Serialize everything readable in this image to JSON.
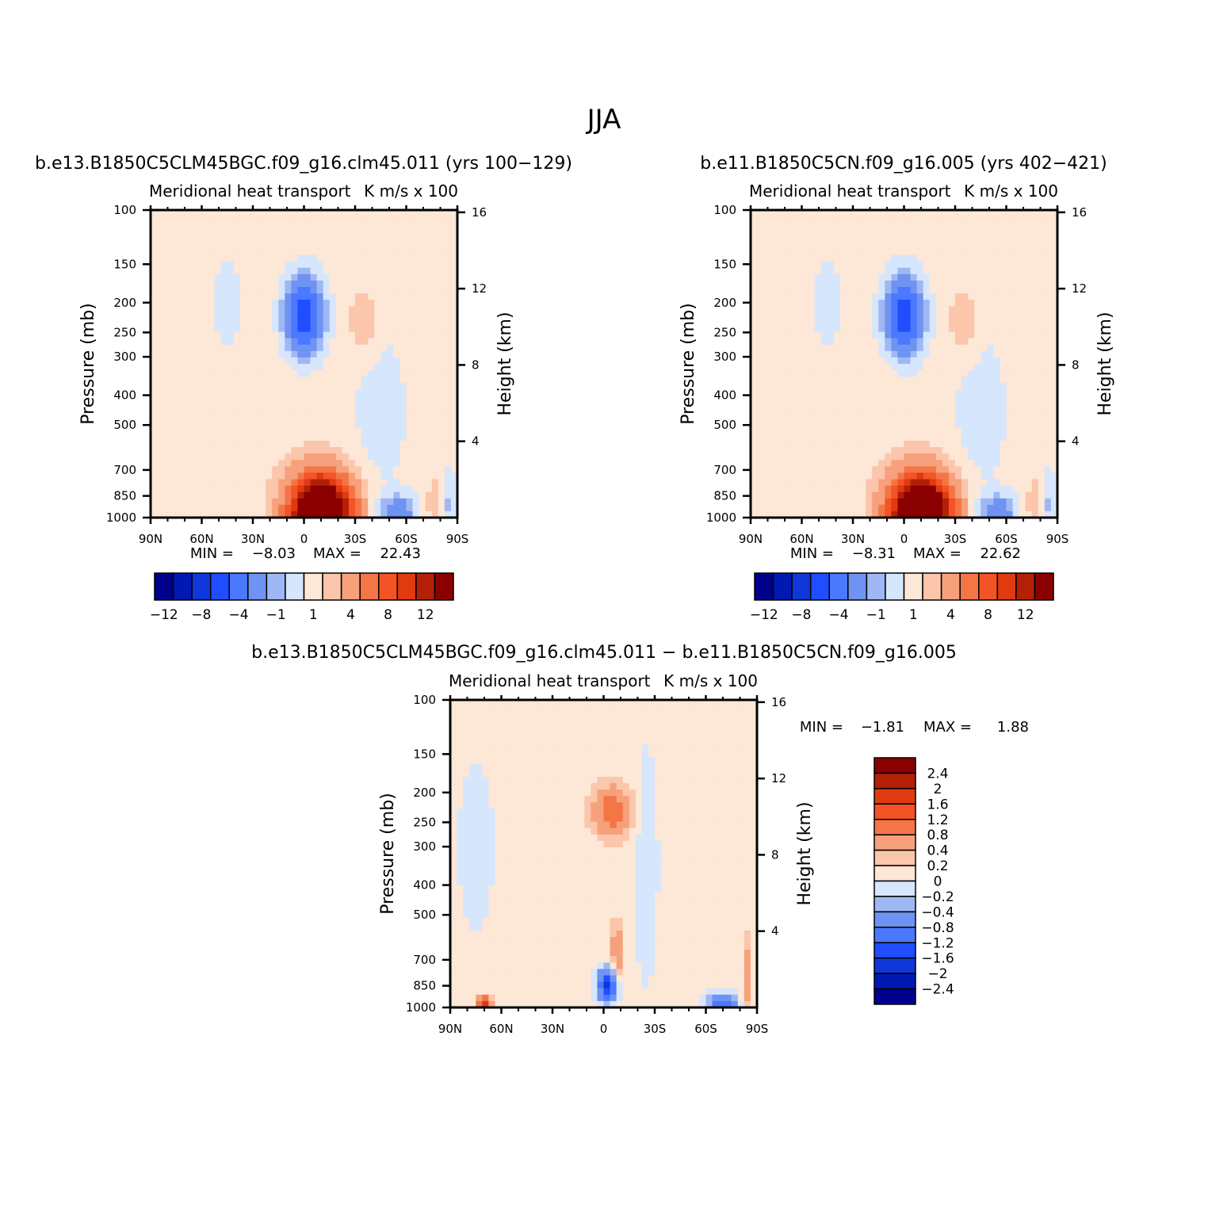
{
  "figure": {
    "title": "JJA"
  },
  "colors": {
    "main_levels": [
      "#00008c",
      "#0019b3",
      "#0f37d9",
      "#1f4dff",
      "#4a78ff",
      "#6f93f2",
      "#9fb8f5",
      "#d6e6fc",
      "#fde7d6",
      "#fbc6ab",
      "#f7a07c",
      "#f47647",
      "#f45325",
      "#e03a10",
      "#b32006",
      "#8a0000"
    ],
    "diff_levels": [
      "#00008c",
      "#0019b3",
      "#0f37d9",
      "#1f4dff",
      "#4a78ff",
      "#6f93f2",
      "#9fb8f5",
      "#d6e6fc",
      "#fde7d6",
      "#fbc6ab",
      "#f7a07c",
      "#f47647",
      "#f45325",
      "#e03a10",
      "#b32006",
      "#8a0000"
    ]
  },
  "chart_data": [
    {
      "type": "heatmap",
      "case": "b.e13.B1850C5CLM45BGC.f09_g16.clm45.011 (yrs 100−129)",
      "left_label": "Meridional heat transport",
      "right_label": "K m/s x 100",
      "ylabel": "Pressure (mb)",
      "y2label": "Height (km)",
      "x_ticks": [
        "90N",
        "60N",
        "30N",
        "0",
        "30S",
        "60S",
        "90S"
      ],
      "xlim": [
        90,
        -90
      ],
      "y_ticks": [
        "100",
        "150",
        "200",
        "250",
        "300",
        "400",
        "500",
        "700",
        "850",
        "1000"
      ],
      "ylim": [
        1000,
        100
      ],
      "y2_ticks": [
        "16",
        "12",
        "8",
        "4"
      ],
      "min_label": "MIN =",
      "min": "−8.03",
      "max_label": "MAX =",
      "max": "22.43",
      "colorbar_labels": [
        "−12",
        "−8",
        "−4",
        "−1",
        "1",
        "4",
        "8",
        "12"
      ],
      "features": [
        {
          "lat": 0,
          "p": 220,
          "value": -8.03
        },
        {
          "lat": -10,
          "p": 980,
          "value": 22.43
        },
        {
          "lat": -35,
          "p": 230,
          "value": 1.5
        },
        {
          "lat": -55,
          "p": 960,
          "value": -4
        }
      ]
    },
    {
      "type": "heatmap",
      "case": "b.e11.B1850C5CN.f09_g16.005 (yrs 402−421)",
      "left_label": "Meridional heat transport",
      "right_label": "K m/s x 100",
      "ylabel": "Pressure (mb)",
      "y2label": "Height (km)",
      "x_ticks": [
        "90N",
        "60N",
        "30N",
        "0",
        "30S",
        "60S",
        "90S"
      ],
      "xlim": [
        90,
        -90
      ],
      "y_ticks": [
        "100",
        "150",
        "200",
        "250",
        "300",
        "400",
        "500",
        "700",
        "850",
        "1000"
      ],
      "ylim": [
        1000,
        100
      ],
      "y2_ticks": [
        "16",
        "12",
        "8",
        "4"
      ],
      "min_label": "MIN =",
      "min": "−8.31",
      "max_label": "MAX =",
      "max": "22.62",
      "colorbar_labels": [
        "−12",
        "−8",
        "−4",
        "−1",
        "1",
        "4",
        "8",
        "12"
      ],
      "features": [
        {
          "lat": 0,
          "p": 220,
          "value": -8.31
        },
        {
          "lat": -10,
          "p": 980,
          "value": 22.62
        },
        {
          "lat": -35,
          "p": 230,
          "value": 1.5
        },
        {
          "lat": -55,
          "p": 960,
          "value": -4
        }
      ]
    },
    {
      "type": "heatmap",
      "case": "b.e13.B1850C5CLM45BGC.f09_g16.clm45.011 − b.e11.B1850C5CN.f09_g16.005",
      "left_label": "Meridional heat transport",
      "right_label": "K m/s x 100",
      "ylabel": "Pressure (mb)",
      "y2label": "Height (km)",
      "x_ticks": [
        "90N",
        "60N",
        "30N",
        "0",
        "30S",
        "60S",
        "90S"
      ],
      "xlim": [
        90,
        -90
      ],
      "y_ticks": [
        "100",
        "150",
        "200",
        "250",
        "300",
        "400",
        "500",
        "700",
        "850",
        "1000"
      ],
      "ylim": [
        1000,
        100
      ],
      "y2_ticks": [
        "16",
        "12",
        "8",
        "4"
      ],
      "min_label": "MIN =",
      "min": "−1.81",
      "max_label": "MAX =",
      "max": "1.88",
      "colorbar_labels": [
        "2.4",
        "2",
        "1.6",
        "1.2",
        "0.8",
        "0.4",
        "0.2",
        "0",
        "−0.2",
        "−0.4",
        "−0.8",
        "−1.2",
        "−1.6",
        "−2",
        "−2.4"
      ],
      "features": [
        {
          "lat": -2,
          "p": 850,
          "value": -1.81
        },
        {
          "lat": -8,
          "p": 650,
          "value": 0.6
        },
        {
          "lat": -5,
          "p": 230,
          "value": 1.0
        },
        {
          "lat": 70,
          "p": 980,
          "value": 1.88
        },
        {
          "lat": -70,
          "p": 980,
          "value": -1.2
        }
      ]
    }
  ]
}
